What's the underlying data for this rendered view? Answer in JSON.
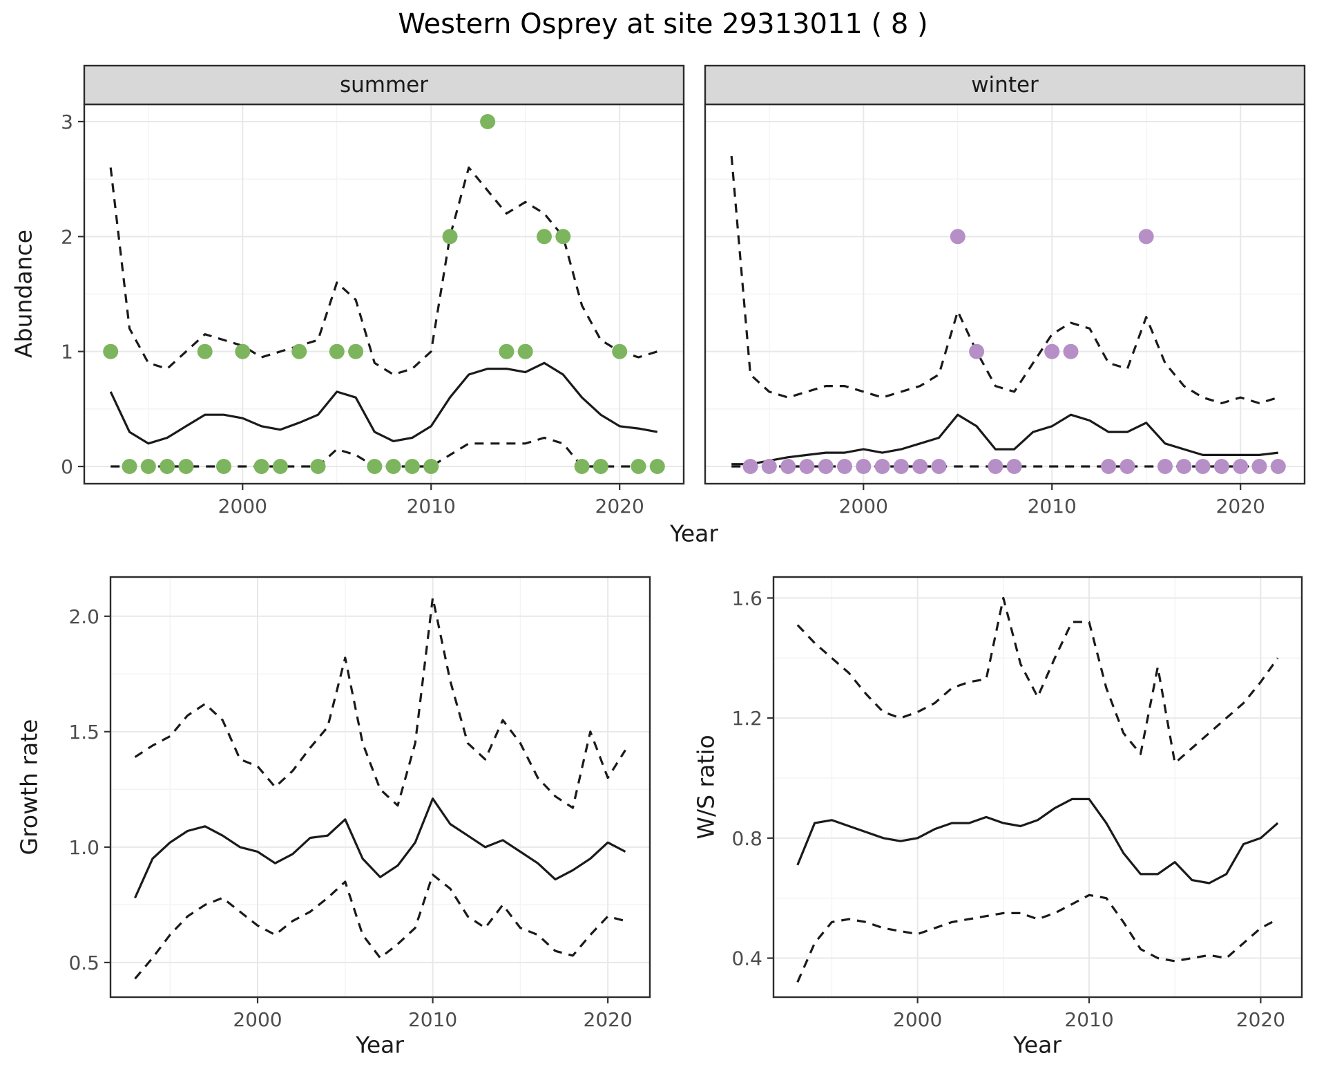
{
  "title": "Western Osprey at site 29313011 ( 8 )",
  "facets": [
    {
      "label": "summer"
    },
    {
      "label": "winter"
    }
  ],
  "colors": {
    "summer_points": "#7db55e",
    "winter_points": "#b68fc7",
    "line": "#1a1a1a",
    "strip_bg": "#d8d8d8",
    "panel_border": "#2b2b2b",
    "grid_major": "#e8e8e8",
    "grid_minor": "#f3f3f3",
    "tick_text": "#4d4d4d"
  },
  "chart_data": [
    {
      "id": "abundance_summer",
      "type": "line+scatter",
      "facet": "summer",
      "x_label": "Year",
      "y_label": "Abundance",
      "x": [
        1993,
        1994,
        1995,
        1996,
        1997,
        1998,
        1999,
        2000,
        2001,
        2002,
        2003,
        2004,
        2005,
        2006,
        2007,
        2008,
        2009,
        2010,
        2011,
        2012,
        2013,
        2014,
        2015,
        2016,
        2017,
        2018,
        2019,
        2020,
        2021,
        2022
      ],
      "series": [
        {
          "name": "median",
          "line": "solid",
          "values": [
            0.65,
            0.3,
            0.2,
            0.25,
            0.35,
            0.45,
            0.45,
            0.42,
            0.35,
            0.32,
            0.38,
            0.45,
            0.65,
            0.6,
            0.3,
            0.22,
            0.25,
            0.35,
            0.6,
            0.8,
            0.85,
            0.85,
            0.82,
            0.9,
            0.8,
            0.6,
            0.45,
            0.35,
            0.33,
            0.3
          ]
        },
        {
          "name": "upper_ci",
          "line": "dashed",
          "values": [
            2.6,
            1.2,
            0.9,
            0.85,
            1.0,
            1.15,
            1.1,
            1.05,
            0.95,
            1.0,
            1.05,
            1.1,
            1.6,
            1.45,
            0.9,
            0.8,
            0.85,
            1.0,
            2.0,
            2.6,
            2.4,
            2.2,
            2.3,
            2.2,
            2.0,
            1.4,
            1.1,
            1.0,
            0.95,
            1.0
          ]
        },
        {
          "name": "lower_ci",
          "line": "dashed",
          "values": [
            0,
            0,
            0,
            0,
            0,
            0,
            0,
            0,
            0,
            0,
            0,
            0,
            0.15,
            0.1,
            0,
            0,
            0,
            0,
            0.1,
            0.2,
            0.2,
            0.2,
            0.2,
            0.25,
            0.2,
            0,
            0,
            0,
            0,
            0
          ]
        }
      ],
      "points": {
        "name": "observed_counts",
        "color": "#7db55e",
        "x": [
          1993,
          1994,
          1995,
          1996,
          1997,
          1998,
          1999,
          2000,
          2001,
          2002,
          2003,
          2004,
          2005,
          2006,
          2007,
          2008,
          2009,
          2010,
          2011,
          2013,
          2014,
          2015,
          2016,
          2017,
          2018,
          2019,
          2020,
          2021,
          2022
        ],
        "y": [
          1,
          0,
          0,
          0,
          0,
          1,
          0,
          1,
          0,
          0,
          1,
          0,
          1,
          1,
          0,
          0,
          0,
          0,
          2,
          3,
          1,
          1,
          2,
          2,
          0,
          0,
          1,
          0,
          0
        ]
      },
      "x_domain": [
        1991.6,
        2023.4
      ],
      "y_domain": [
        -0.15,
        3.15
      ],
      "x_ticks": [
        2000,
        2010,
        2020
      ],
      "x_tick_labels": [
        "2000",
        "2010",
        "2020"
      ],
      "y_ticks": [
        0,
        1,
        2,
        3
      ],
      "y_tick_labels": [
        "0",
        "1",
        "2",
        "3"
      ]
    },
    {
      "id": "abundance_winter",
      "type": "line+scatter",
      "facet": "winter",
      "x_label": "Year",
      "x": [
        1993,
        1994,
        1995,
        1996,
        1997,
        1998,
        1999,
        2000,
        2001,
        2002,
        2003,
        2004,
        2005,
        2006,
        2007,
        2008,
        2009,
        2010,
        2011,
        2012,
        2013,
        2014,
        2015,
        2016,
        2017,
        2018,
        2019,
        2020,
        2021,
        2022
      ],
      "series": [
        {
          "name": "median",
          "line": "solid",
          "values": [
            0.02,
            0.02,
            0.05,
            0.08,
            0.1,
            0.12,
            0.12,
            0.15,
            0.12,
            0.15,
            0.2,
            0.25,
            0.45,
            0.35,
            0.15,
            0.15,
            0.3,
            0.35,
            0.45,
            0.4,
            0.3,
            0.3,
            0.38,
            0.2,
            0.15,
            0.1,
            0.1,
            0.1,
            0.1,
            0.12
          ]
        },
        {
          "name": "upper_ci",
          "line": "dashed",
          "values": [
            2.7,
            0.8,
            0.65,
            0.6,
            0.65,
            0.7,
            0.7,
            0.65,
            0.6,
            0.65,
            0.7,
            0.8,
            1.35,
            1.0,
            0.7,
            0.65,
            0.9,
            1.15,
            1.25,
            1.2,
            0.9,
            0.85,
            1.3,
            0.9,
            0.7,
            0.6,
            0.55,
            0.6,
            0.55,
            0.6
          ]
        },
        {
          "name": "lower_ci",
          "line": "dashed",
          "values": [
            0,
            0,
            0,
            0,
            0,
            0,
            0,
            0,
            0,
            0,
            0,
            0,
            0,
            0,
            0,
            0,
            0,
            0,
            0,
            0,
            0,
            0,
            0,
            0,
            0,
            0,
            0,
            0,
            0,
            0
          ]
        }
      ],
      "points": {
        "name": "observed_counts",
        "color": "#b68fc7",
        "x": [
          1994,
          1995,
          1996,
          1997,
          1998,
          1999,
          2000,
          2001,
          2002,
          2003,
          2004,
          2005,
          2006,
          2007,
          2008,
          2010,
          2011,
          2013,
          2014,
          2015,
          2016,
          2017,
          2018,
          2019,
          2020,
          2021,
          2022
        ],
        "y": [
          0,
          0,
          0,
          0,
          0,
          0,
          0,
          0,
          0,
          0,
          0,
          2,
          1,
          0,
          0,
          1,
          1,
          0,
          0,
          2,
          0,
          0,
          0,
          0,
          0,
          0,
          0
        ]
      },
      "x_domain": [
        1991.6,
        2023.4
      ],
      "y_domain": [
        -0.15,
        3.15
      ],
      "x_ticks": [
        2000,
        2010,
        2020
      ],
      "x_tick_labels": [
        "2000",
        "2010",
        "2020"
      ],
      "y_ticks": [
        0,
        1,
        2,
        3
      ],
      "y_tick_labels": [
        "0",
        "1",
        "2",
        "3"
      ]
    },
    {
      "id": "growth_rate",
      "type": "line",
      "x_label": "Year",
      "y_label": "Growth rate",
      "x": [
        1993,
        1994,
        1995,
        1996,
        1997,
        1998,
        1999,
        2000,
        2001,
        2002,
        2003,
        2004,
        2005,
        2006,
        2007,
        2008,
        2009,
        2010,
        2011,
        2012,
        2013,
        2014,
        2015,
        2016,
        2017,
        2018,
        2019,
        2020,
        2021
      ],
      "series": [
        {
          "name": "median",
          "line": "solid",
          "values": [
            0.78,
            0.95,
            1.02,
            1.07,
            1.09,
            1.05,
            1.0,
            0.98,
            0.93,
            0.97,
            1.04,
            1.05,
            1.12,
            0.95,
            0.87,
            0.92,
            1.02,
            1.21,
            1.1,
            1.05,
            1.0,
            1.03,
            0.98,
            0.93,
            0.86,
            0.9,
            0.95,
            1.02,
            0.98
          ]
        },
        {
          "name": "upper_ci",
          "line": "dashed",
          "values": [
            1.39,
            1.44,
            1.48,
            1.57,
            1.62,
            1.55,
            1.38,
            1.35,
            1.26,
            1.33,
            1.43,
            1.52,
            1.82,
            1.45,
            1.25,
            1.18,
            1.45,
            2.08,
            1.72,
            1.45,
            1.38,
            1.55,
            1.45,
            1.3,
            1.22,
            1.17,
            1.5,
            1.3,
            1.42
          ]
        },
        {
          "name": "lower_ci",
          "line": "dashed",
          "values": [
            0.43,
            0.52,
            0.62,
            0.7,
            0.75,
            0.78,
            0.72,
            0.66,
            0.62,
            0.68,
            0.72,
            0.78,
            0.85,
            0.62,
            0.52,
            0.58,
            0.65,
            0.88,
            0.82,
            0.7,
            0.65,
            0.75,
            0.65,
            0.62,
            0.55,
            0.53,
            0.62,
            0.7,
            0.68
          ]
        }
      ],
      "x_domain": [
        1991.6,
        2022.4
      ],
      "y_domain": [
        0.35,
        2.17
      ],
      "x_ticks": [
        2000,
        2010,
        2020
      ],
      "x_tick_labels": [
        "2000",
        "2010",
        "2020"
      ],
      "y_ticks": [
        0.5,
        1.0,
        1.5,
        2.0
      ],
      "y_tick_labels": [
        "0.5",
        "1.0",
        "1.5",
        "2.0"
      ]
    },
    {
      "id": "ws_ratio",
      "type": "line",
      "x_label": "Year",
      "y_label": "W/S ratio",
      "x": [
        1993,
        1994,
        1995,
        1996,
        1997,
        1998,
        1999,
        2000,
        2001,
        2002,
        2003,
        2004,
        2005,
        2006,
        2007,
        2008,
        2009,
        2010,
        2011,
        2012,
        2013,
        2014,
        2015,
        2016,
        2017,
        2018,
        2019,
        2020,
        2021
      ],
      "series": [
        {
          "name": "median",
          "line": "solid",
          "values": [
            0.71,
            0.85,
            0.86,
            0.84,
            0.82,
            0.8,
            0.79,
            0.8,
            0.83,
            0.85,
            0.85,
            0.87,
            0.85,
            0.84,
            0.86,
            0.9,
            0.93,
            0.93,
            0.85,
            0.75,
            0.68,
            0.68,
            0.72,
            0.66,
            0.65,
            0.68,
            0.78,
            0.8,
            0.85
          ]
        },
        {
          "name": "upper_ci",
          "line": "dashed",
          "values": [
            1.51,
            1.45,
            1.4,
            1.35,
            1.28,
            1.22,
            1.2,
            1.22,
            1.25,
            1.3,
            1.32,
            1.33,
            1.6,
            1.38,
            1.27,
            1.4,
            1.52,
            1.52,
            1.3,
            1.15,
            1.08,
            1.37,
            1.05,
            1.1,
            1.15,
            1.2,
            1.25,
            1.32,
            1.4
          ]
        },
        {
          "name": "lower_ci",
          "line": "dashed",
          "values": [
            0.32,
            0.45,
            0.52,
            0.53,
            0.52,
            0.5,
            0.49,
            0.48,
            0.5,
            0.52,
            0.53,
            0.54,
            0.55,
            0.55,
            0.53,
            0.55,
            0.58,
            0.61,
            0.6,
            0.52,
            0.43,
            0.4,
            0.39,
            0.4,
            0.41,
            0.4,
            0.45,
            0.5,
            0.53
          ]
        }
      ],
      "x_domain": [
        1991.6,
        2022.4
      ],
      "y_domain": [
        0.27,
        1.67
      ],
      "x_ticks": [
        2000,
        2010,
        2020
      ],
      "x_tick_labels": [
        "2000",
        "2010",
        "2020"
      ],
      "y_ticks": [
        0.4,
        0.8,
        1.2,
        1.6
      ],
      "y_tick_labels": [
        "0.4",
        "0.8",
        "1.2",
        "1.6"
      ]
    }
  ]
}
